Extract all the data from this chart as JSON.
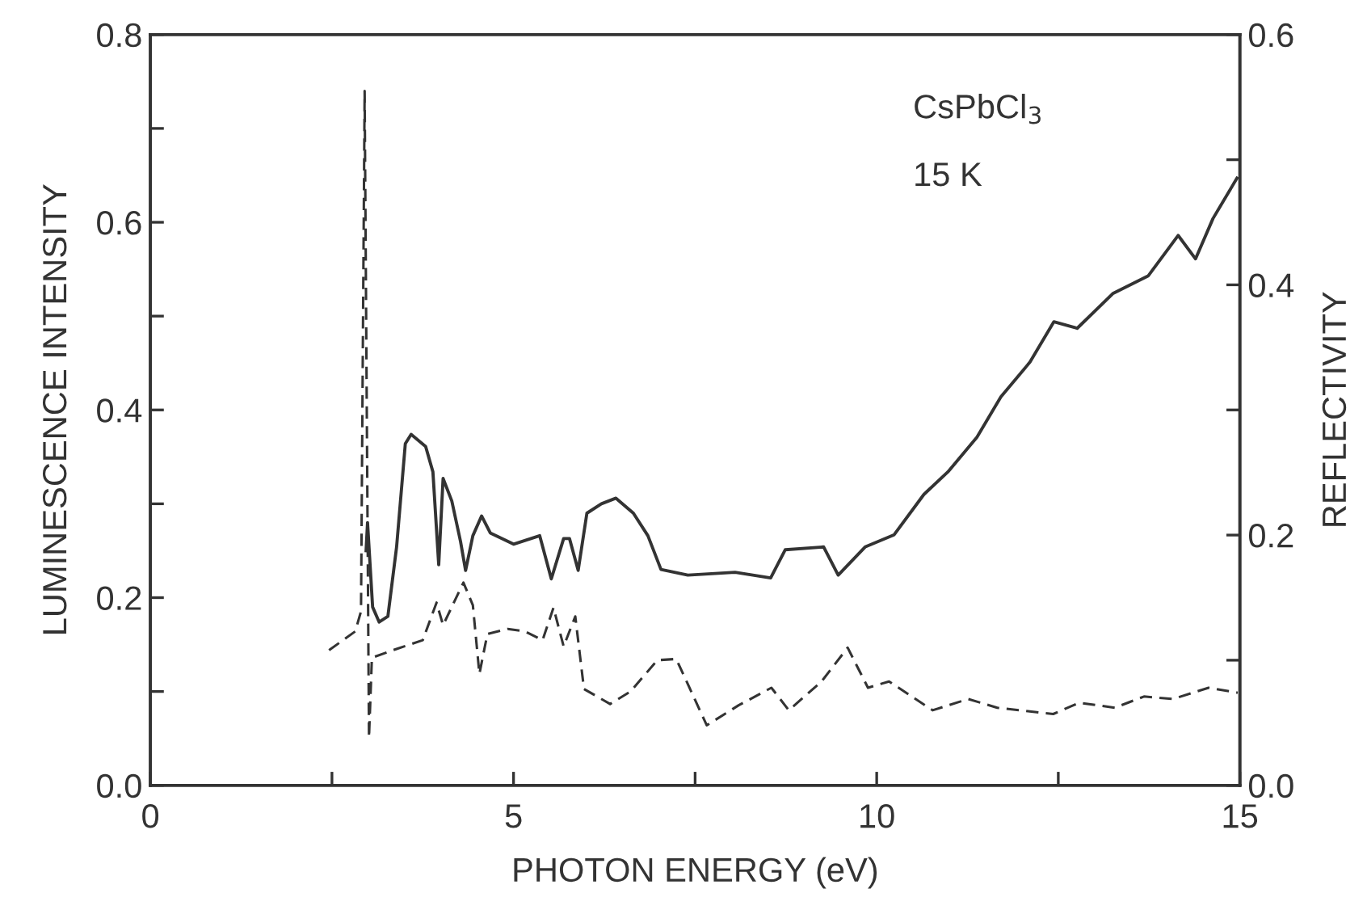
{
  "chart_data": {
    "type": "line",
    "xlabel": "PHOTON ENERGY (eV)",
    "ylabel": "LUMINESCENCE INTENSITY",
    "y2label": "REFLECTIVITY",
    "annotations": [
      "CsPbCl$_{3}$",
      "15 K"
    ],
    "xlim": [
      0,
      15
    ],
    "xticks": [
      0,
      {
        "value": 2.5,
        "label": null
      },
      5,
      {
        "value": 7.5,
        "label": null
      },
      10,
      {
        "value": 12.5,
        "label": null
      },
      15
    ],
    "ylim": [
      0,
      0.8
    ],
    "yticks": [
      {
        "value": 0,
        "label": "0.0"
      },
      {
        "value": 0.1,
        "label": null
      },
      {
        "value": 0.2,
        "label": "0.2"
      },
      {
        "value": 0.3,
        "label": null
      },
      {
        "value": 0.4,
        "label": "0.4"
      },
      {
        "value": 0.5,
        "label": null
      },
      {
        "value": 0.6,
        "label": "0.6"
      },
      {
        "value": 0.7,
        "label": null
      },
      {
        "value": 0.8,
        "label": "0.8"
      }
    ],
    "y2lim": [
      0,
      0.6
    ],
    "y2ticks": [
      {
        "value": 0,
        "label": "0.0"
      },
      {
        "value": 0.1,
        "label": null
      },
      {
        "value": 0.2,
        "label": "0.2"
      },
      {
        "value": 0.3,
        "label": null
      },
      {
        "value": 0.4,
        "label": "0.4"
      },
      {
        "value": 0.5,
        "label": null
      },
      {
        "value": 0.6,
        "label": "0.6"
      }
    ],
    "grid": false,
    "marker": "none",
    "series": [
      {
        "color": "#333333",
        "line_style": "solid",
        "x": [
          2.97,
          2.99,
          3.06,
          3.15,
          3.27,
          3.39,
          3.51,
          3.59,
          3.79,
          3.89,
          3.97,
          4.03,
          4.15,
          4.27,
          4.34,
          4.44,
          4.56,
          4.68,
          5.0,
          5.36,
          5.52,
          5.69,
          5.77,
          5.89,
          6.01,
          6.21,
          6.41,
          6.65,
          6.85,
          7.03,
          7.4,
          8.05,
          8.54,
          8.74,
          9.27,
          9.47,
          9.84,
          10.24,
          10.65,
          10.98,
          11.38,
          11.71,
          12.11,
          12.44,
          12.76,
          13.25,
          13.74,
          14.15,
          14.39,
          14.63,
          14.96
        ],
        "values": [
          0.25,
          0.28,
          0.19,
          0.174,
          0.18,
          0.254,
          0.364,
          0.374,
          0.361,
          0.334,
          0.235,
          0.327,
          0.303,
          0.26,
          0.229,
          0.266,
          0.287,
          0.269,
          0.257,
          0.266,
          0.22,
          0.263,
          0.263,
          0.229,
          0.29,
          0.3,
          0.306,
          0.29,
          0.266,
          0.23,
          0.224,
          0.227,
          0.221,
          0.251,
          0.254,
          0.224,
          0.254,
          0.267,
          0.31,
          0.334,
          0.371,
          0.414,
          0.451,
          0.494,
          0.487,
          0.524,
          0.543,
          0.586,
          0.561,
          0.604,
          0.647
        ]
      },
      {
        "color": "#333333",
        "line_style": "dashed",
        "axis": "y2",
        "x": [
          2.46,
          2.82,
          2.9,
          2.95,
          3.01,
          3.05,
          3.39,
          3.75,
          3.94,
          4.03,
          4.31,
          4.44,
          4.53,
          4.64,
          4.92,
          5.16,
          5.4,
          5.55,
          5.69,
          5.85,
          5.97,
          6.33,
          6.61,
          6.98,
          7.24,
          7.66,
          8.1,
          8.55,
          8.79,
          9.24,
          9.6,
          9.88,
          10.17,
          10.77,
          11.26,
          11.66,
          12.43,
          12.79,
          13.28,
          13.68,
          14.08,
          14.57,
          14.97
        ],
        "values": [
          0.108,
          0.123,
          0.139,
          0.555,
          0.038,
          0.102,
          0.109,
          0.116,
          0.146,
          0.128,
          0.162,
          0.144,
          0.089,
          0.121,
          0.125,
          0.123,
          0.116,
          0.142,
          0.111,
          0.135,
          0.077,
          0.065,
          0.075,
          0.1,
          0.101,
          0.048,
          0.064,
          0.078,
          0.06,
          0.083,
          0.11,
          0.078,
          0.083,
          0.06,
          0.069,
          0.062,
          0.057,
          0.066,
          0.062,
          0.071,
          0.069,
          0.078,
          0.074
        ]
      }
    ]
  }
}
